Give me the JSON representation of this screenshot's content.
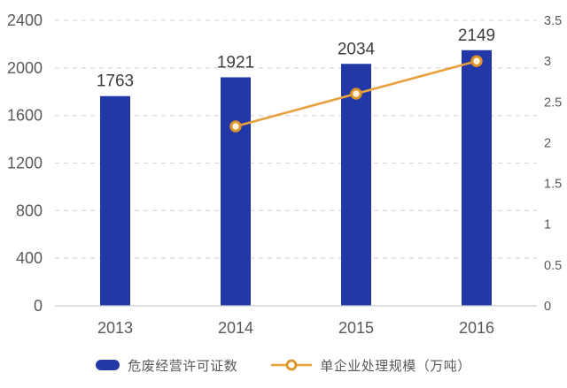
{
  "chart_data": {
    "type": "bar",
    "subtype": "bar+line dual axis",
    "title": "",
    "categories": [
      "2013",
      "2014",
      "2015",
      "2016"
    ],
    "series": [
      {
        "name": "危废经营许可证数",
        "type": "bar",
        "axis": "left",
        "color": "#2238A7",
        "values": [
          1763,
          1921,
          2034,
          2149
        ],
        "data_labels": [
          "1763",
          "1921",
          "2034",
          "2149"
        ]
      },
      {
        "name": "单企业处理规模（万吨）",
        "type": "line",
        "axis": "right",
        "color": "#E8A13C",
        "marker_ring_color": "#DE9426",
        "marker_fill": "#FFF4DE",
        "values": [
          null,
          2.2,
          2.6,
          3.0
        ]
      }
    ],
    "left_axis": {
      "min": 0,
      "max": 2400,
      "step": 400,
      "tick_labels_top_to_bottom": [
        "2400",
        "2000",
        "1600",
        "1200",
        "800",
        "400",
        "0"
      ]
    },
    "right_axis": {
      "min": 0,
      "max": 3.5,
      "step": 0.5,
      "tick_labels_top_to_bottom": [
        "3.5",
        "3",
        "2.5",
        "2",
        "1.5",
        "1",
        "0.5",
        "0"
      ]
    },
    "grid": "horizontal dashed",
    "legend_position": "bottom"
  },
  "legend": {
    "items": [
      {
        "label": "危废经营许可证数",
        "swatch": "bar",
        "color": "#2238A7"
      },
      {
        "label": "单企业处理规模（万吨）",
        "swatch": "line-marker",
        "color": "#E8A13C"
      }
    ]
  },
  "colors": {
    "background": "#ffffff",
    "bar": "#2238A7",
    "line": "#E8A13C",
    "marker_ring": "#DE9426",
    "marker_fill": "#FFF4DE",
    "gridline": "#DCDCDC",
    "axis_line": "#C9C9C9",
    "tick_text": "#595959",
    "value_label_text": "#3D3D3D"
  }
}
